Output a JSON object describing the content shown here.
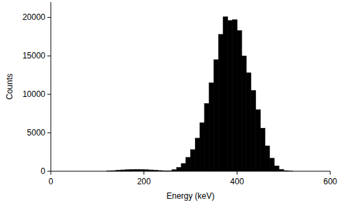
{
  "chart_data": {
    "type": "histogram",
    "x_label": "Energy (keV)",
    "y_label": "Counts",
    "bins": [
      120,
      130,
      140,
      150,
      160,
      170,
      180,
      190,
      200,
      210,
      220,
      230,
      240,
      250,
      260,
      270,
      280,
      290,
      300,
      310,
      320,
      330,
      340,
      350,
      360,
      370,
      380,
      390,
      400,
      410,
      420,
      430,
      440,
      450,
      460,
      470,
      480,
      490,
      500,
      510,
      520
    ],
    "values": [
      40,
      80,
      130,
      170,
      200,
      220,
      230,
      220,
      200,
      170,
      130,
      90,
      60,
      60,
      200,
      500,
      1000,
      1800,
      2800,
      4300,
      6300,
      8800,
      11500,
      14500,
      17800,
      20100,
      19600,
      19700,
      18300,
      15000,
      12800,
      10500,
      8000,
      5600,
      3300,
      1700,
      700,
      250,
      80,
      20
    ],
    "color": "#000000",
    "xlim": [
      0,
      600
    ],
    "xticks": [
      0,
      200,
      400,
      600
    ],
    "ylim": [
      0,
      22000
    ],
    "yticks": [
      0,
      5000,
      10000,
      15000,
      20000
    ],
    "grid": false
  }
}
